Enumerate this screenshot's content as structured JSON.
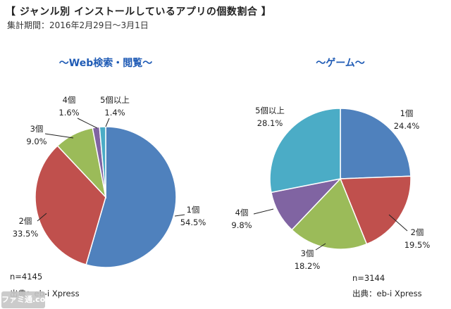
{
  "header": {
    "title": "【 ジャンル別 インストールしているアプリの個数割合 】",
    "period": "集計期間：2016年2月29日〜3月1日"
  },
  "watermark_text": "ファミ通.com",
  "chart_data": [
    {
      "type": "pie",
      "title": "〜Web検索・閲覧〜",
      "categories": [
        "1個",
        "2個",
        "3個",
        "4個",
        "5個以上"
      ],
      "values": [
        54.5,
        33.5,
        9.0,
        1.6,
        1.4
      ],
      "value_labels": [
        "54.5%",
        "33.5%",
        "9.0%",
        "1.6%",
        "1.4%"
      ],
      "colors": [
        "#4f81bd",
        "#c0504d",
        "#9bbb59",
        "#8064a2",
        "#4bacc6"
      ],
      "n_label": "n=4145",
      "source": "出典：eb-i Xpress"
    },
    {
      "type": "pie",
      "title": "〜ゲーム〜",
      "categories": [
        "1個",
        "2個",
        "3個",
        "4個",
        "5個以上"
      ],
      "values": [
        24.4,
        19.5,
        18.2,
        9.8,
        28.1
      ],
      "value_labels": [
        "24.4%",
        "19.5%",
        "18.2%",
        "9.8%",
        "28.1%"
      ],
      "colors": [
        "#4f81bd",
        "#c0504d",
        "#9bbb59",
        "#8064a2",
        "#4bacc6"
      ],
      "n_label": "n=3144",
      "source": "出典：eb-i Xpress"
    }
  ]
}
